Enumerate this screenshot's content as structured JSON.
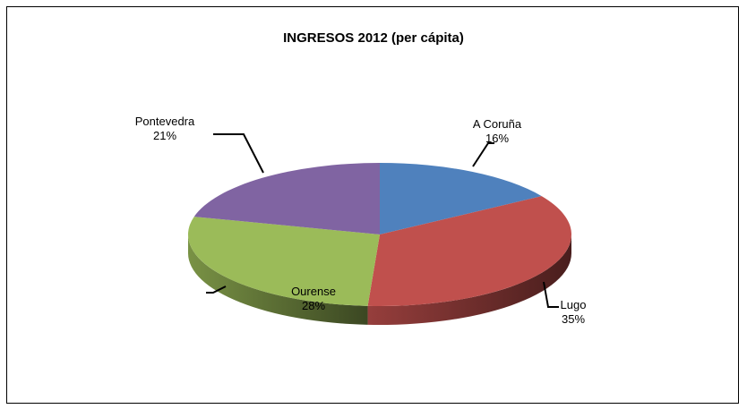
{
  "chart_data": {
    "type": "pie",
    "title": "INGRESOS 2012 (per cápita)",
    "slices": [
      {
        "label": "A Coruña",
        "value": 16,
        "pct_label": "16%",
        "color": "#4F81BD"
      },
      {
        "label": "Lugo",
        "value": 35,
        "pct_label": "35%",
        "color": "#C0504D"
      },
      {
        "label": "Ourense",
        "value": 28,
        "pct_label": "28%",
        "color": "#9BBB59"
      },
      {
        "label": "Pontevedra",
        "value": 21,
        "pct_label": "21%",
        "color": "#8064A2"
      }
    ],
    "style": "3d-pie",
    "legend": "none"
  }
}
